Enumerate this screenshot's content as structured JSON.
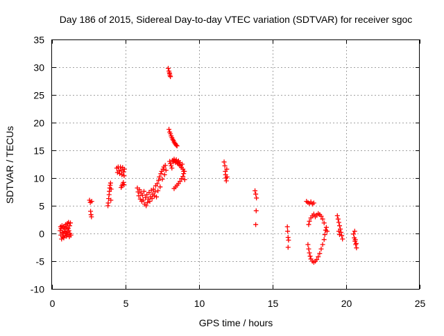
{
  "chart_data": {
    "type": "scatter",
    "title": "Day 186 of 2015, Sidereal Day-to-day VTEC variation (SDTVAR) for receiver sgoc",
    "xlabel": "GPS time / hours",
    "ylabel": "SDTVAR / TECUs",
    "xlim": [
      0,
      25
    ],
    "ylim": [
      -10,
      35
    ],
    "xticks": [
      0,
      5,
      10,
      15,
      20,
      25
    ],
    "yticks": [
      -10,
      -5,
      0,
      5,
      10,
      15,
      20,
      25,
      30,
      35
    ],
    "grid": true,
    "marker": "+",
    "color": "#ff0000",
    "series": [
      {
        "name": "SDTVAR",
        "points": [
          [
            0.55,
            0.5
          ],
          [
            0.58,
            1.2
          ],
          [
            0.6,
            -0.3
          ],
          [
            0.62,
            0.9
          ],
          [
            0.65,
            -1.0
          ],
          [
            0.68,
            1.4
          ],
          [
            0.7,
            0.2
          ],
          [
            0.72,
            -0.6
          ],
          [
            0.75,
            1.0
          ],
          [
            0.78,
            0.0
          ],
          [
            0.8,
            -0.8
          ],
          [
            0.82,
            1.3
          ],
          [
            0.85,
            0.4
          ],
          [
            0.88,
            -0.4
          ],
          [
            0.9,
            0.8
          ],
          [
            0.92,
            1.6
          ],
          [
            0.95,
            0.1
          ],
          [
            0.98,
            -0.5
          ],
          [
            1.0,
            1.1
          ],
          [
            1.02,
            0.3
          ],
          [
            1.05,
            1.8
          ],
          [
            1.08,
            -0.2
          ],
          [
            1.1,
            0.9
          ],
          [
            1.12,
            2.0
          ],
          [
            1.15,
            0.5
          ],
          [
            1.18,
            -0.6
          ],
          [
            1.2,
            1.4
          ],
          [
            1.22,
            0.0
          ],
          [
            1.25,
            1.9
          ],
          [
            1.28,
            -0.3
          ],
          [
            2.55,
            6.0
          ],
          [
            2.6,
            5.6
          ],
          [
            2.62,
            4.0
          ],
          [
            2.65,
            3.4
          ],
          [
            2.7,
            5.8
          ],
          [
            2.68,
            3.0
          ],
          [
            3.8,
            5.0
          ],
          [
            3.82,
            5.5
          ],
          [
            3.85,
            6.3
          ],
          [
            3.88,
            7.0
          ],
          [
            3.9,
            7.6
          ],
          [
            3.92,
            8.2
          ],
          [
            3.95,
            8.7
          ],
          [
            3.98,
            9.1
          ],
          [
            4.0,
            6.0
          ],
          [
            4.02,
            8.0
          ],
          [
            4.4,
            11.8
          ],
          [
            4.45,
            11.0
          ],
          [
            4.5,
            12.0
          ],
          [
            4.55,
            11.3
          ],
          [
            4.6,
            10.8
          ],
          [
            4.65,
            12.0
          ],
          [
            4.7,
            11.4
          ],
          [
            4.75,
            10.6
          ],
          [
            4.8,
            11.9
          ],
          [
            4.85,
            11.1
          ],
          [
            4.9,
            10.4
          ],
          [
            4.92,
            11.6
          ],
          [
            4.7,
            8.3
          ],
          [
            4.75,
            8.6
          ],
          [
            4.8,
            8.9
          ],
          [
            4.85,
            9.2
          ],
          [
            4.9,
            8.8
          ],
          [
            5.8,
            8.2
          ],
          [
            5.85,
            7.5
          ],
          [
            5.9,
            6.8
          ],
          [
            5.95,
            7.9
          ],
          [
            6.0,
            6.2
          ],
          [
            6.05,
            7.3
          ],
          [
            6.1,
            5.8
          ],
          [
            6.15,
            6.9
          ],
          [
            6.2,
            6.0
          ],
          [
            6.25,
            7.6
          ],
          [
            6.3,
            5.3
          ],
          [
            6.35,
            6.5
          ],
          [
            6.4,
            5.0
          ],
          [
            6.45,
            7.0
          ],
          [
            6.5,
            5.6
          ],
          [
            6.55,
            6.2
          ],
          [
            6.6,
            7.4
          ],
          [
            6.65,
            5.8
          ],
          [
            6.7,
            6.6
          ],
          [
            6.75,
            7.8
          ],
          [
            6.8,
            6.3
          ],
          [
            6.85,
            7.1
          ],
          [
            6.9,
            8.0
          ],
          [
            6.95,
            6.8
          ],
          [
            7.0,
            7.5
          ],
          [
            7.05,
            8.6
          ],
          [
            7.1,
            6.6
          ],
          [
            7.15,
            9.0
          ],
          [
            7.2,
            7.7
          ],
          [
            7.25,
            9.6
          ],
          [
            7.3,
            10.2
          ],
          [
            7.35,
            8.4
          ],
          [
            7.4,
            10.8
          ],
          [
            7.45,
            11.2
          ],
          [
            7.5,
            9.8
          ],
          [
            7.55,
            11.6
          ],
          [
            7.6,
            12.0
          ],
          [
            7.65,
            10.6
          ],
          [
            7.7,
            12.3
          ],
          [
            7.75,
            11.4
          ],
          [
            7.9,
            29.8
          ],
          [
            7.95,
            29.3
          ],
          [
            8.0,
            28.8
          ],
          [
            8.05,
            28.3
          ],
          [
            7.98,
            29.0
          ],
          [
            8.02,
            28.5
          ],
          [
            7.95,
            18.8
          ],
          [
            8.0,
            18.3
          ],
          [
            8.05,
            18.0
          ],
          [
            8.1,
            17.6
          ],
          [
            8.15,
            17.3
          ],
          [
            8.2,
            17.0
          ],
          [
            8.25,
            16.8
          ],
          [
            8.3,
            16.5
          ],
          [
            8.35,
            16.3
          ],
          [
            8.4,
            16.1
          ],
          [
            8.45,
            15.9
          ],
          [
            8.5,
            15.8
          ],
          [
            8.0,
            13.0
          ],
          [
            8.05,
            12.6
          ],
          [
            8.1,
            12.2
          ],
          [
            8.15,
            11.8
          ],
          [
            8.2,
            13.2
          ],
          [
            8.25,
            12.9
          ],
          [
            8.3,
            13.4
          ],
          [
            8.35,
            13.1
          ],
          [
            8.4,
            12.8
          ],
          [
            8.45,
            13.3
          ],
          [
            8.5,
            12.9
          ],
          [
            8.55,
            12.6
          ],
          [
            8.6,
            13.1
          ],
          [
            8.65,
            12.4
          ],
          [
            8.7,
            12.8
          ],
          [
            8.75,
            12.2
          ],
          [
            8.8,
            11.9
          ],
          [
            8.85,
            12.5
          ],
          [
            8.9,
            11.6
          ],
          [
            8.95,
            11.2
          ],
          [
            8.3,
            8.1
          ],
          [
            8.4,
            8.4
          ],
          [
            8.5,
            8.7
          ],
          [
            8.6,
            9.0
          ],
          [
            8.7,
            9.4
          ],
          [
            8.8,
            9.9
          ],
          [
            8.9,
            10.3
          ],
          [
            8.95,
            10.8
          ],
          [
            9.0,
            11.2
          ],
          [
            9.02,
            9.7
          ],
          [
            11.7,
            12.9
          ],
          [
            11.75,
            12.2
          ],
          [
            11.78,
            11.2
          ],
          [
            11.8,
            10.6
          ],
          [
            11.82,
            10.0
          ],
          [
            11.85,
            9.5
          ],
          [
            11.88,
            11.6
          ],
          [
            11.9,
            10.2
          ],
          [
            13.8,
            7.7
          ],
          [
            13.85,
            7.1
          ],
          [
            13.9,
            6.4
          ],
          [
            13.88,
            4.1
          ],
          [
            13.85,
            1.6
          ],
          [
            16.0,
            1.2
          ],
          [
            16.02,
            0.4
          ],
          [
            16.05,
            -0.7
          ],
          [
            16.08,
            -1.2
          ],
          [
            16.05,
            -2.5
          ],
          [
            17.3,
            5.8
          ],
          [
            17.4,
            5.6
          ],
          [
            17.5,
            5.4
          ],
          [
            17.6,
            5.7
          ],
          [
            17.7,
            5.3
          ],
          [
            17.8,
            5.5
          ],
          [
            17.4,
            -2.0
          ],
          [
            17.45,
            -2.8
          ],
          [
            17.5,
            -3.5
          ],
          [
            17.55,
            -4.1
          ],
          [
            17.6,
            -4.6
          ],
          [
            17.7,
            -5.0
          ],
          [
            17.8,
            -5.2
          ],
          [
            17.9,
            -5.0
          ],
          [
            18.0,
            -4.7
          ],
          [
            18.1,
            -4.2
          ],
          [
            18.2,
            -3.6
          ],
          [
            18.3,
            -2.8
          ],
          [
            18.4,
            -2.0
          ],
          [
            18.5,
            -1.1
          ],
          [
            18.55,
            -0.2
          ],
          [
            18.6,
            0.6
          ],
          [
            18.65,
            1.1
          ],
          [
            18.7,
            0.4
          ],
          [
            18.5,
            1.9
          ],
          [
            18.4,
            2.6
          ],
          [
            18.3,
            3.1
          ],
          [
            18.2,
            3.4
          ],
          [
            18.1,
            3.6
          ],
          [
            18.0,
            3.3
          ],
          [
            17.9,
            3.0
          ],
          [
            17.8,
            3.5
          ],
          [
            17.7,
            3.2
          ],
          [
            17.6,
            2.8
          ],
          [
            17.5,
            2.2
          ],
          [
            17.45,
            1.6
          ],
          [
            19.4,
            3.2
          ],
          [
            19.45,
            2.6
          ],
          [
            19.5,
            2.0
          ],
          [
            19.55,
            1.4
          ],
          [
            19.6,
            0.8
          ],
          [
            19.65,
            0.2
          ],
          [
            19.7,
            -0.4
          ],
          [
            19.75,
            -1.0
          ],
          [
            19.5,
            0.4
          ],
          [
            19.55,
            -0.2
          ],
          [
            20.5,
            -0.1
          ],
          [
            20.55,
            -0.8
          ],
          [
            20.6,
            -1.4
          ],
          [
            20.65,
            -2.0
          ],
          [
            20.7,
            -2.6
          ],
          [
            20.58,
            0.4
          ],
          [
            20.62,
            -1.1
          ],
          [
            20.68,
            -1.8
          ]
        ]
      }
    ]
  }
}
